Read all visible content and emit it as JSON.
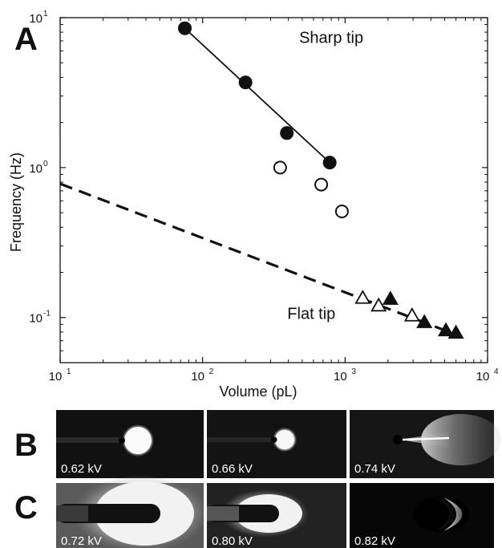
{
  "panel_labels": {
    "a": "A",
    "b": "B",
    "c": "C"
  },
  "chart_data": {
    "type": "scatter",
    "title": "",
    "xlabel": "Volume (pL)",
    "ylabel": "Frequency (Hz)",
    "x_scale": "log",
    "y_scale": "log",
    "xlim": [
      10,
      10000
    ],
    "ylim": [
      0.05,
      10
    ],
    "grid": false,
    "legend": "none",
    "x_ticks": [
      {
        "value": 10,
        "base": "10",
        "exp": "1"
      },
      {
        "value": 100,
        "base": "10",
        "exp": "2"
      },
      {
        "value": 1000,
        "base": "10",
        "exp": "3"
      },
      {
        "value": 10000,
        "base": "10",
        "exp": "4"
      }
    ],
    "y_ticks": [
      {
        "value": 0.1,
        "base": "10",
        "exp": "-1"
      },
      {
        "value": 1,
        "base": "10",
        "exp": "0"
      },
      {
        "value": 10,
        "base": "10",
        "exp": "1"
      }
    ],
    "annotations": [
      {
        "text": "Sharp tip",
        "x": 800,
        "y": 6.8
      },
      {
        "text": "Flat tip",
        "x": 580,
        "y": 0.098
      }
    ],
    "series": [
      {
        "marker": "circle-filled",
        "x": [
          75,
          200,
          390,
          780
        ],
        "y": [
          8.5,
          3.7,
          1.7,
          1.08
        ]
      },
      {
        "marker": "circle-open",
        "x": [
          350,
          680,
          950
        ],
        "y": [
          1.0,
          0.77,
          0.51
        ]
      },
      {
        "marker": "triangle-open",
        "x": [
          1330,
          1720,
          2950
        ],
        "y": [
          0.135,
          0.12,
          0.103
        ]
      },
      {
        "marker": "triangle-filled",
        "x": [
          2080,
          3600,
          5100,
          6000
        ],
        "y": [
          0.133,
          0.093,
          0.082,
          0.079
        ]
      }
    ],
    "fits": [
      {
        "style": "solid",
        "x": [
          75,
          780
        ],
        "y": [
          8.5,
          1.08
        ]
      },
      {
        "style": "dashed",
        "x": [
          10,
          6000
        ],
        "y": [
          0.78,
          0.077
        ]
      }
    ]
  },
  "photos": {
    "row_b": [
      {
        "label": "0.62 kV"
      },
      {
        "label": "0.66 kV"
      },
      {
        "label": "0.74 kV"
      }
    ],
    "row_c": [
      {
        "label": "0.72 kV"
      },
      {
        "label": "0.80 kV"
      },
      {
        "label": "0.82 kV"
      }
    ]
  }
}
